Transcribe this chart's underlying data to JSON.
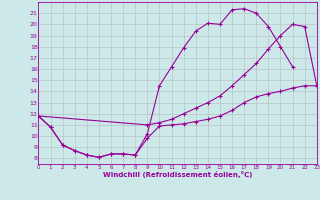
{
  "xlabel": "Windchill (Refroidissement éolien,°C)",
  "background_color": "#cce8e8",
  "line_color": "#990099",
  "grid_color": "#aaaaaa",
  "xmin": 0,
  "xmax": 23,
  "ymin": 7.5,
  "ymax": 22.0,
  "yticks": [
    8,
    9,
    10,
    11,
    12,
    13,
    14,
    15,
    16,
    17,
    18,
    19,
    20,
    21
  ],
  "xticks": [
    0,
    1,
    2,
    3,
    4,
    5,
    6,
    7,
    8,
    9,
    10,
    11,
    12,
    13,
    14,
    15,
    16,
    17,
    18,
    19,
    20,
    21,
    22,
    23
  ],
  "curve_bottom_x": [
    0,
    1,
    2,
    3,
    4,
    5,
    6,
    7,
    8,
    9,
    10,
    11,
    12,
    13,
    14,
    15,
    16,
    17,
    18,
    19,
    20,
    21,
    22,
    23
  ],
  "curve_bottom_y": [
    11.8,
    10.8,
    9.2,
    8.7,
    8.3,
    8.1,
    8.4,
    8.4,
    8.3,
    9.8,
    10.9,
    11.0,
    11.1,
    11.3,
    11.5,
    11.8,
    12.3,
    13.0,
    13.5,
    13.8,
    14.0,
    14.3,
    14.5,
    14.5
  ],
  "curve_top_x": [
    0,
    1,
    2,
    3,
    4,
    5,
    6,
    7,
    8,
    9,
    10,
    11,
    12,
    13,
    14,
    15,
    16,
    17,
    18,
    19,
    20,
    21
  ],
  "curve_top_y": [
    11.8,
    10.8,
    9.2,
    8.7,
    8.3,
    8.1,
    8.4,
    8.4,
    8.3,
    10.2,
    14.5,
    16.2,
    17.9,
    19.4,
    20.1,
    20.0,
    21.3,
    21.4,
    21.0,
    19.8,
    18.0,
    16.2
  ],
  "curve_diag_x": [
    0,
    9,
    10,
    11,
    12,
    13,
    14,
    15,
    16,
    17,
    18,
    19,
    20,
    21,
    22,
    23
  ],
  "curve_diag_y": [
    11.8,
    11.0,
    11.2,
    11.5,
    12.0,
    12.5,
    13.0,
    13.6,
    14.5,
    15.5,
    16.5,
    17.8,
    19.0,
    20.0,
    19.8,
    14.5
  ]
}
